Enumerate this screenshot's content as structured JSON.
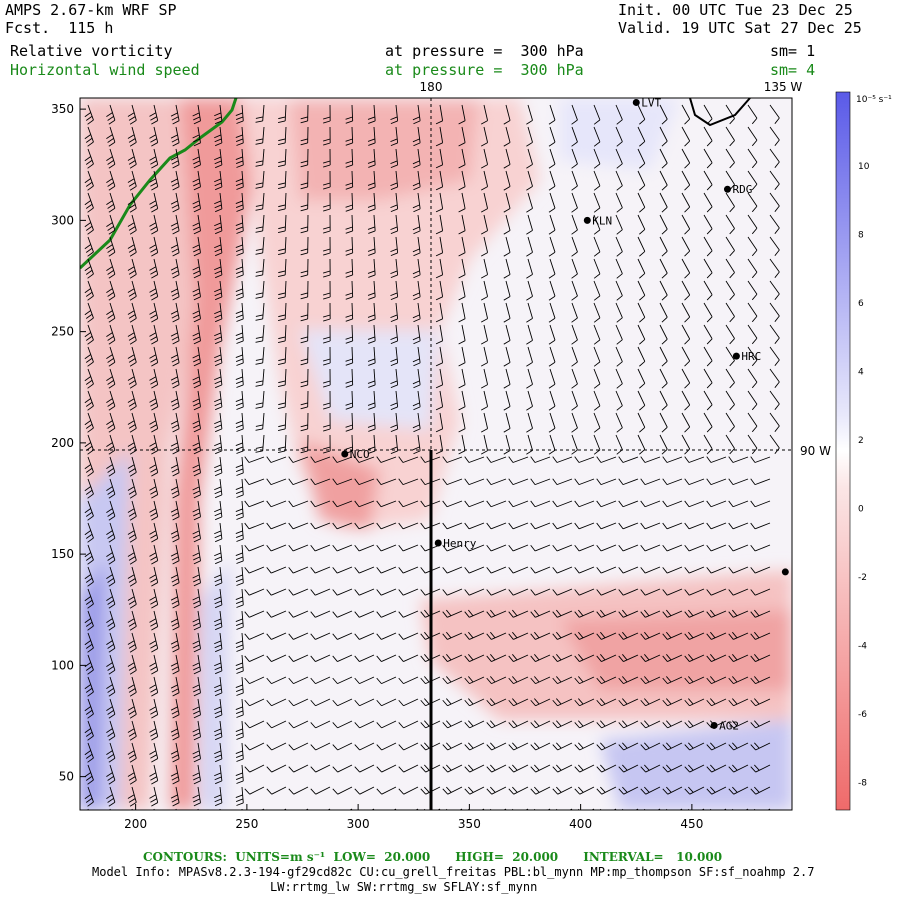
{
  "header": {
    "model": "AMPS 2.67-km WRF SP",
    "fcst": "Fcst.  115 h",
    "init": "Init. 00 UTC Tue 23 Dec 25",
    "valid": "Valid. 19 UTC Sat 27 Dec 25",
    "field1": "Relative vorticity",
    "field1_level": "at pressure =  300 hPa",
    "field1_sm": "sm= 1",
    "field2": "Horizontal wind speed",
    "field2_level": "at pressure =  300 hPa",
    "field2_sm": "sm= 4"
  },
  "map": {
    "lon_label_top": "180",
    "lon_label_right_top": "135 W",
    "lon_label_right_mid": "90 W",
    "x_ticks": [
      "200",
      "250",
      "300",
      "350",
      "400",
      "450"
    ],
    "y_ticks": [
      "50",
      "100",
      "150",
      "200",
      "250",
      "300",
      "350"
    ],
    "x_range": [
      175,
      495
    ],
    "y_range": [
      35,
      355
    ],
    "stations": [
      {
        "id": "LVT",
        "label": "LVT",
        "x": 425,
        "y": 353
      },
      {
        "id": "RDG",
        "label": "RDG",
        "x": 466,
        "y": 314
      },
      {
        "id": "KLN",
        "label": "KLN",
        "x": 403,
        "y": 300
      },
      {
        "id": "HRC",
        "label": "HRC",
        "x": 470,
        "y": 239
      },
      {
        "id": "NCO",
        "label": "NCO",
        "x": 294,
        "y": 195
      },
      {
        "id": "Henry",
        "label": "Henry",
        "x": 336,
        "y": 155
      },
      {
        "id": "edge",
        "label": "",
        "x": 492,
        "y": 142
      },
      {
        "id": "AG2",
        "label": "AG2",
        "x": 460,
        "y": 73
      }
    ]
  },
  "colorbar": {
    "unit": "10⁻⁵ s⁻¹",
    "labels": [
      "10",
      "8",
      "6",
      "4",
      "2",
      "0",
      "-2",
      "-4",
      "-6",
      "-8"
    ],
    "colors": {
      "neg_strong": "#f06a6a",
      "neutral": "#ffffff",
      "pos_strong": "#6a6af0"
    }
  },
  "footer": {
    "contours": "CONTOURS:  UNITS=m s⁻¹  LOW=  20.000      HIGH=  20.000      INTERVAL=   10.000",
    "model_info": "Model Info: MPASv8.2.3-194-gf29cd82c CU:cu_grell_freitas PBL:bl_mynn MP:mp_thompson SF:sf_noahmp 2.7",
    "model_info2": "LW:rrtmg_lw SW:rrtmg_sw SFLAY:sf_mynn"
  }
}
